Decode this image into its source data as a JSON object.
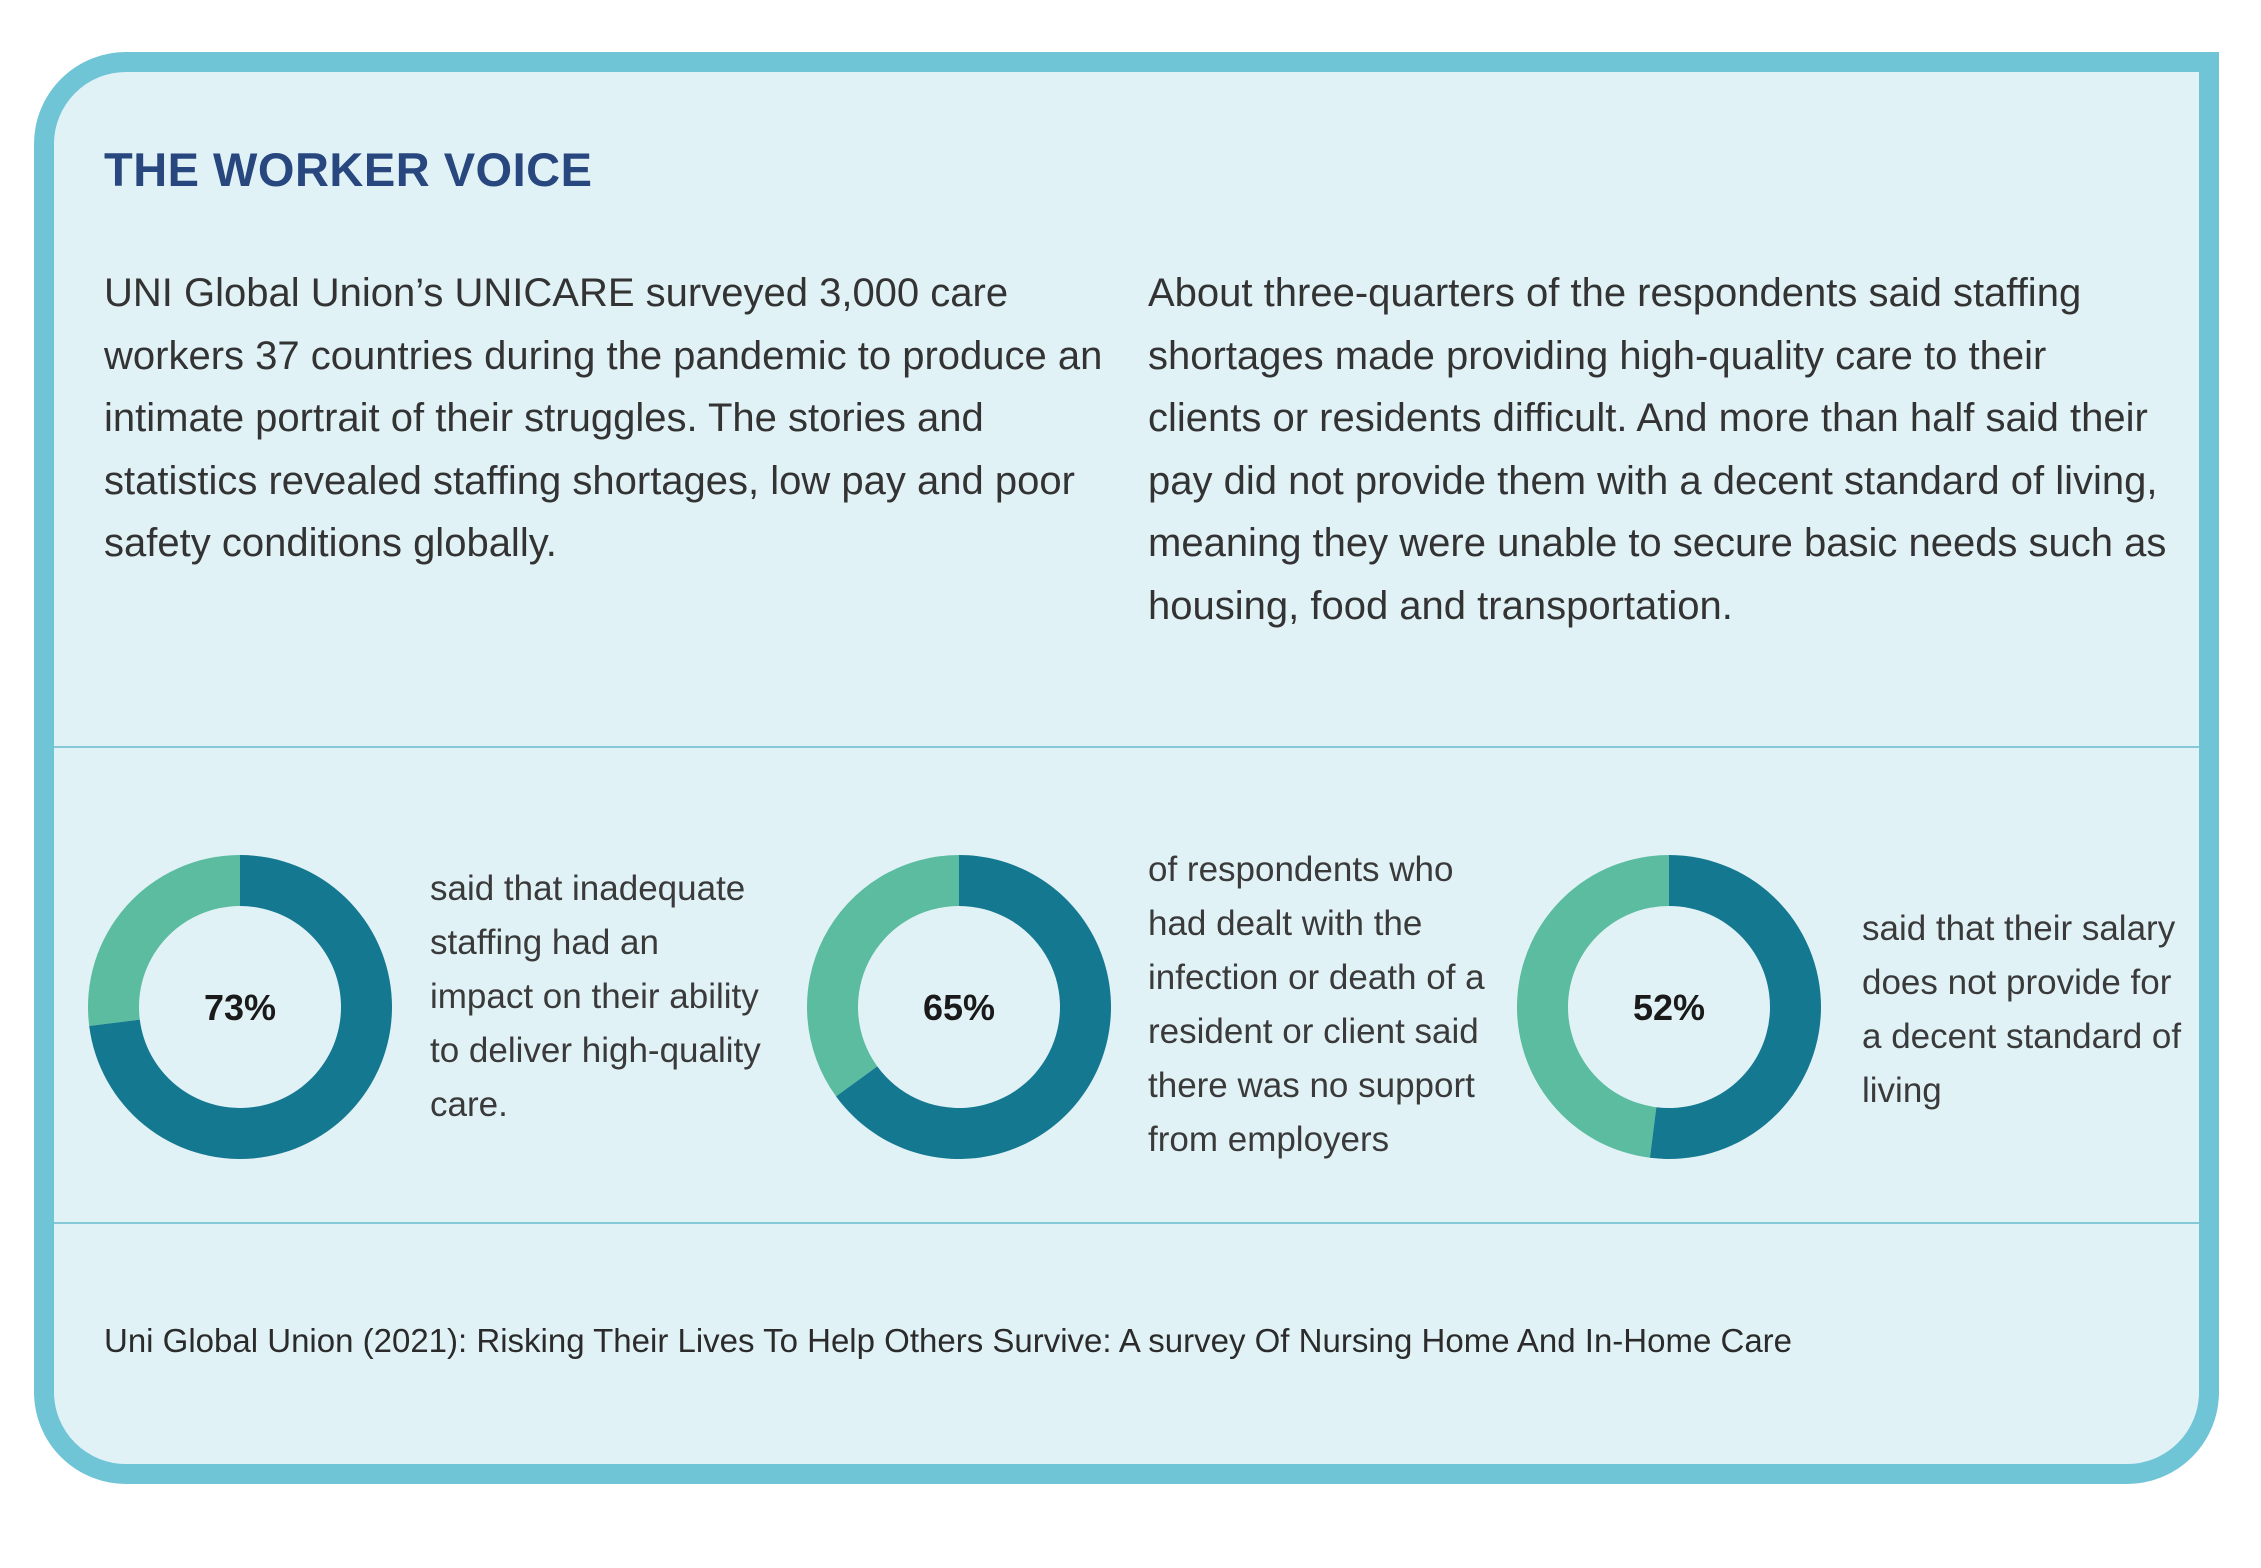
{
  "title": "THE WORKER VOICE",
  "intro": {
    "left": "UNI Global Union’s UNICARE surveyed 3,000 care workers 37 countries during the pandemic to produce an intimate portrait of their struggles. The stories and statistics revealed staffing shortages, low pay and poor safety conditions globally.",
    "right": "About three-quarters of the respondents said staffing shortages made providing high-quality care to their clients or residents difficult. And more than half said their pay did not provide them with a decent standard of living, meaning they were unable to secure basic needs such as housing, food and transportation."
  },
  "colors": {
    "primary": "#157891",
    "secondary": "#5bbc9f",
    "title": "#27477e",
    "border": "#6fc5d6",
    "background": "#e1f2f7"
  },
  "chart_data": [
    {
      "type": "pie",
      "value": 73,
      "label": "73%",
      "caption": "said that inadequate staffing had an impact on their ability to deliver high-quality care."
    },
    {
      "type": "pie",
      "value": 65,
      "label": "65%",
      "caption": "of respondents who had dealt with the infection or death of a resident or client said there was no support from employers"
    },
    {
      "type": "pie",
      "value": 52,
      "label": "52%",
      "caption": "said that their salary does not provide for a decent standard of living"
    }
  ],
  "source": "Uni Global Union (2021): Risking Their Lives To Help Others Survive: A survey Of Nursing Home And In-Home Care"
}
